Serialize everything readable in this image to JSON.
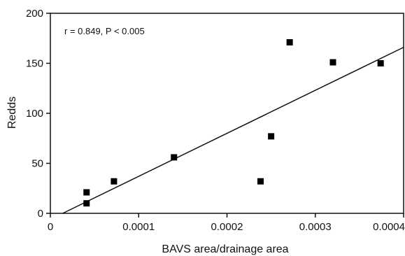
{
  "chart_data": {
    "type": "scatter",
    "title": "",
    "xlabel": "BAVS area/drainage area",
    "ylabel": "Redds",
    "xlim": [
      0,
      0.0004
    ],
    "ylim": [
      0,
      200
    ],
    "x_ticks": [
      0,
      0.0001,
      0.0002,
      0.0003,
      0.0004
    ],
    "x_tick_labels": [
      "0",
      "0.0001",
      "0.0002",
      "0.0003",
      "0.0004"
    ],
    "y_ticks": [
      0,
      50,
      100,
      150,
      200
    ],
    "y_tick_labels": [
      "0",
      "50",
      "100",
      "150",
      "200"
    ],
    "grid": false,
    "legend": "none",
    "annotation": "r = 0.849, P < 0.005",
    "series": [
      {
        "points": [
          {
            "x": 4.1e-05,
            "y": 10
          },
          {
            "x": 4.1e-05,
            "y": 21
          },
          {
            "x": 7.2e-05,
            "y": 32
          },
          {
            "x": 0.00014,
            "y": 56
          },
          {
            "x": 0.000238,
            "y": 32
          },
          {
            "x": 0.00025,
            "y": 77
          },
          {
            "x": 0.000271,
            "y": 171
          },
          {
            "x": 0.00032,
            "y": 151
          },
          {
            "x": 0.000374,
            "y": 150
          }
        ]
      }
    ],
    "trendline": {
      "x": [
        1.4e-05,
        0.0004
      ],
      "y": [
        0,
        166
      ]
    }
  }
}
